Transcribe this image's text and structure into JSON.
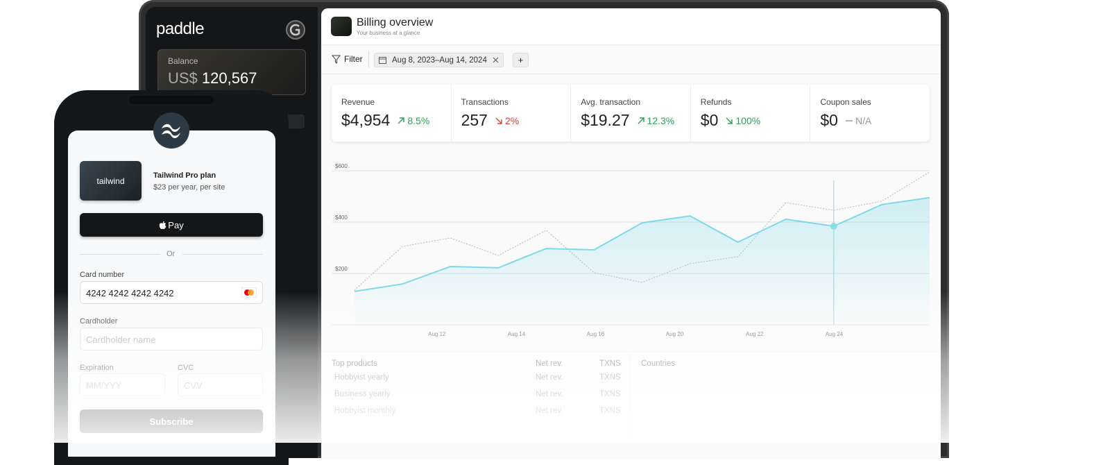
{
  "sidebar": {
    "logo": "paddle",
    "balance_label": "Balance",
    "currency": "US$",
    "balance": "120,567"
  },
  "header": {
    "title": "Billing overview",
    "subtitle": "Your business at a glance"
  },
  "toolbar": {
    "filter": "Filter",
    "date_range": "Aug 8, 2023–Aug 14, 2024",
    "add": "+"
  },
  "metrics": [
    {
      "label": "Revenue",
      "value": "$4,954",
      "change": "8.5%",
      "trend": "up",
      "color": "#2f9e5a"
    },
    {
      "label": "Transactions",
      "value": "257",
      "change": "2%",
      "trend": "down",
      "color": "#d9443b"
    },
    {
      "label": "Avg. transaction",
      "value": "$19.27",
      "change": "12.3%",
      "trend": "up",
      "color": "#2f9e5a"
    },
    {
      "label": "Refunds",
      "value": "$0",
      "change": "100%",
      "trend": "down",
      "color": "#2f9e5a"
    },
    {
      "label": "Coupon sales",
      "value": "$0",
      "change": "N/A",
      "trend": "flat",
      "color": "#9a9a9a"
    }
  ],
  "chart_data": {
    "type": "line",
    "ylim": [
      0,
      620
    ],
    "yticks": [
      {
        "value": 200,
        "label": "$200"
      },
      {
        "value": 400,
        "label": "$400"
      },
      {
        "value": 600,
        "label": "$600"
      }
    ],
    "xlim": [
      0,
      12
    ],
    "xticks": [
      {
        "value": 1.72,
        "label": "Aug 12"
      },
      {
        "value": 3.38,
        "label": "Aug 14"
      },
      {
        "value": 5.03,
        "label": "Aug 16"
      },
      {
        "value": 6.68,
        "label": "Aug 20"
      },
      {
        "value": 8.35,
        "label": "Aug 22"
      },
      {
        "value": 10.01,
        "label": "Aug 24"
      }
    ],
    "grid": true,
    "crosshair_index": 10,
    "series": [
      {
        "color": "#7fd8ea",
        "fill": true,
        "values": [
          130,
          159,
          227,
          222,
          297,
          292,
          397,
          424,
          322,
          411,
          384,
          468,
          495
        ]
      },
      {
        "color": "#b8b8b8",
        "dashed": true,
        "values": [
          135,
          305,
          338,
          270,
          368,
          203,
          165,
          238,
          265,
          476,
          446,
          481,
          595
        ]
      }
    ]
  },
  "products": {
    "title": "Top products",
    "columns": [
      "Net rev.",
      "TXNS"
    ],
    "rows": [
      [
        "Hobbyist yearly",
        "Net rev.",
        "TXNS"
      ],
      [
        "Business yearly",
        "Net rev.",
        "TXNS"
      ],
      [
        "Hobbyist monthly",
        "Net rev.",
        "TXNS"
      ]
    ]
  },
  "countries": {
    "title": "Countries"
  },
  "checkout": {
    "brand": "tailwind",
    "plan": "Tailwind Pro plan",
    "price": "$23 per year, per site",
    "pay_button": "Pay",
    "divider": "Or",
    "card_label": "Card number",
    "card_number": "4242 4242 4242 4242",
    "holder_label": "Cardholder",
    "holder_placeholder": "Cardholder name",
    "exp_label": "Expiration",
    "exp_placeholder": "MM/YYY",
    "cvc_label": "CVC",
    "cvc_placeholder": "CVV",
    "submit": "Subscribe"
  }
}
